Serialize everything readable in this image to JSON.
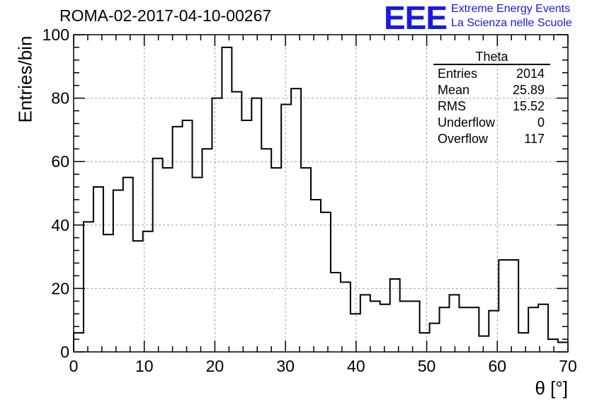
{
  "title": "ROMA-02-2017-04-10-00267",
  "logo": {
    "mark": "EEE",
    "line1": "Extreme Energy Events",
    "line2": "La Scienza nelle Scuole",
    "color": "#1a1adb"
  },
  "stats": {
    "title": "Theta",
    "rows": [
      {
        "label": "Entries",
        "value": "2014"
      },
      {
        "label": "Mean",
        "value": "25.89"
      },
      {
        "label": "RMS",
        "value": "15.52"
      },
      {
        "label": "Underflow",
        "value": "0"
      },
      {
        "label": "Overflow",
        "value": "117"
      }
    ]
  },
  "chart_data": {
    "type": "histogram",
    "xlabel": "θ [°]",
    "ylabel": "Entries/bin",
    "xlim": [
      0,
      70
    ],
    "ylim": [
      0,
      100
    ],
    "bin_width": 1.4,
    "bin_edges_start": 0,
    "xticks": [
      0,
      10,
      20,
      30,
      40,
      50,
      60,
      70
    ],
    "yticks": [
      0,
      20,
      40,
      60,
      80,
      100
    ],
    "grid": true,
    "values": [
      6,
      41,
      52,
      37,
      51,
      55,
      35,
      38,
      61,
      58,
      71,
      73,
      55,
      64,
      80,
      96,
      82,
      73,
      80,
      64,
      58,
      78,
      83,
      58,
      48,
      44,
      25,
      22,
      12,
      18,
      16,
      15,
      23,
      16,
      16,
      6,
      9,
      14,
      18,
      14,
      14,
      5,
      13,
      29,
      29,
      6,
      14,
      15,
      4,
      3
    ]
  }
}
